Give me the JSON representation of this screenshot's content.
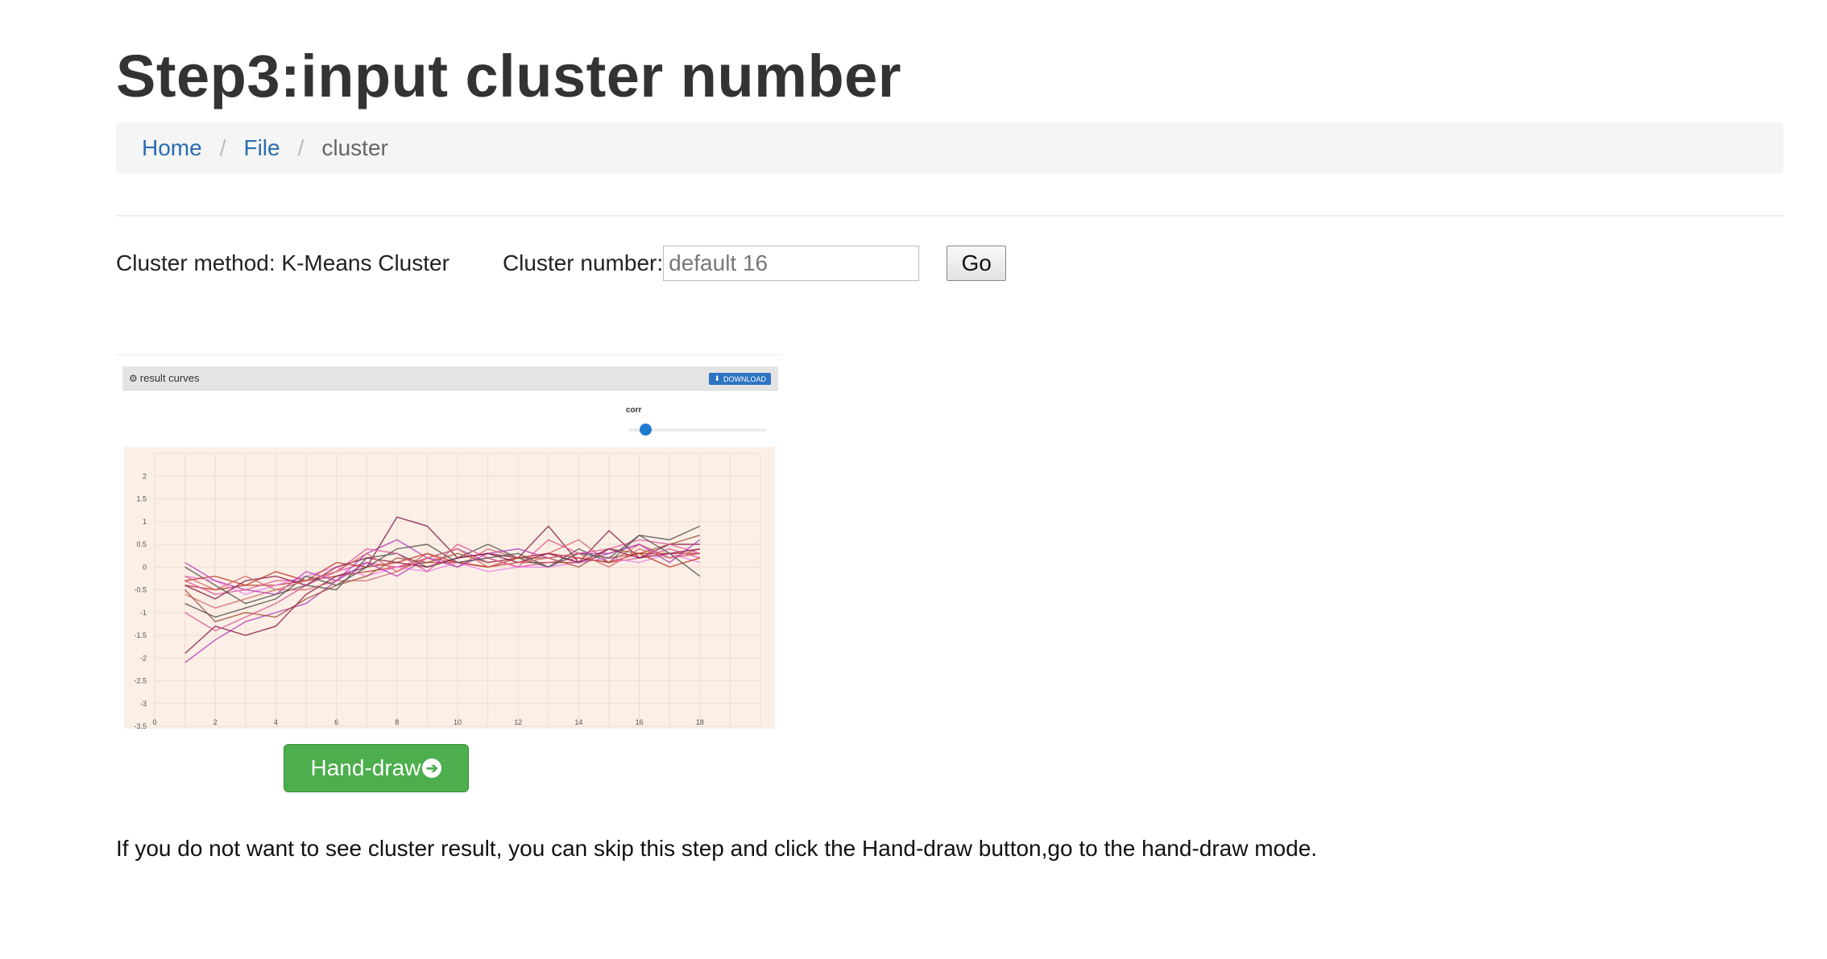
{
  "page": {
    "title": "Step3:input cluster number"
  },
  "breadcrumb": {
    "items": [
      "Home",
      "File"
    ],
    "current": "cluster",
    "separator": "/"
  },
  "form": {
    "method_label": "Cluster method: K-Means Cluster",
    "number_label": "Cluster number:",
    "number_placeholder": "default 16",
    "go_label": "Go"
  },
  "panel": {
    "header": "result curves",
    "download_label": "DOWNLOAD",
    "slider_label": "corr",
    "slider_value": 0.12,
    "icons": {
      "gear": "gear-icon",
      "download": "download-icon"
    }
  },
  "chart_data": {
    "type": "line",
    "x": [
      1,
      2,
      3,
      4,
      5,
      6,
      7,
      8,
      9,
      10,
      11,
      12,
      13,
      14,
      15,
      16,
      17,
      18
    ],
    "xlim": [
      0,
      20
    ],
    "ylim": [
      -3.5,
      2.5
    ],
    "x_ticks": [
      "0",
      "2",
      "4",
      "6",
      "8",
      "10",
      "12",
      "14",
      "16",
      "18"
    ],
    "y_ticks": [
      "2",
      "1.5",
      "1",
      "0.5",
      "0",
      "-0.5",
      "-1",
      "-1.5",
      "-2",
      "-2.5",
      "-3",
      "-3.5"
    ],
    "grid": true,
    "background": "#fbefe6",
    "colors": [
      "#c0392b",
      "#e0569b",
      "#b63fb8",
      "#8a1e4a",
      "#555555",
      "#d46a6a",
      "#ee82ee",
      "#a0523a"
    ],
    "series": [
      {
        "values": [
          -0.4,
          -0.5,
          -0.4,
          -0.4,
          -0.3,
          -0.2,
          -0.1,
          0.0,
          0.1,
          0.1,
          0.0,
          0.1,
          0.1,
          0.1,
          0.2,
          0.3,
          0.3,
          0.3
        ]
      },
      {
        "values": [
          -0.3,
          -0.6,
          -0.5,
          -0.3,
          -0.3,
          -0.1,
          0.1,
          0.0,
          0.2,
          0.1,
          0.2,
          0.0,
          0.1,
          0.2,
          0.1,
          0.2,
          0.4,
          0.2
        ]
      },
      {
        "values": [
          -2.1,
          -1.6,
          -1.2,
          -1.0,
          -0.8,
          -0.3,
          0.3,
          0.6,
          0.2,
          0.4,
          0.1,
          0.2,
          0.3,
          0.1,
          0.3,
          0.5,
          0.2,
          0.3
        ]
      },
      {
        "values": [
          -1.9,
          -1.3,
          -1.5,
          -1.3,
          -0.6,
          -0.2,
          0.0,
          1.1,
          0.9,
          0.2,
          0.3,
          0.2,
          0.9,
          0.1,
          0.8,
          0.2,
          0.5,
          0.5
        ]
      },
      {
        "values": [
          0.0,
          -0.4,
          -0.8,
          -0.6,
          -0.4,
          -0.5,
          0.2,
          0.3,
          0.0,
          0.2,
          0.5,
          0.2,
          0.0,
          0.4,
          0.1,
          0.7,
          0.6,
          0.9
        ]
      },
      {
        "values": [
          -0.6,
          -0.9,
          -0.7,
          -0.5,
          -0.5,
          -0.3,
          -0.3,
          -0.1,
          0.3,
          0.0,
          0.4,
          0.2,
          0.3,
          0.6,
          0.1,
          0.5,
          0.2,
          0.4
        ]
      },
      {
        "values": [
          -0.2,
          -0.3,
          -0.6,
          -0.4,
          -0.2,
          0.0,
          -0.2,
          0.0,
          -0.1,
          0.1,
          -0.1,
          0.0,
          0.0,
          0.1,
          0.2,
          0.1,
          0.3,
          0.1
        ]
      },
      {
        "values": [
          -0.5,
          -1.2,
          -1.0,
          -1.1,
          -0.7,
          -0.4,
          -0.2,
          0.2,
          0.1,
          0.3,
          0.1,
          0.2,
          0.2,
          0.0,
          0.4,
          0.3,
          0.5,
          0.7
        ]
      },
      {
        "values": [
          -0.3,
          -0.2,
          -0.4,
          -0.1,
          -0.3,
          0.1,
          0.0,
          0.1,
          0.3,
          0.1,
          0.0,
          0.2,
          0.3,
          0.2,
          0.1,
          0.3,
          0.0,
          0.2
        ]
      },
      {
        "values": [
          -1.0,
          -1.4,
          -1.1,
          -0.8,
          -0.4,
          -0.1,
          0.4,
          0.3,
          -0.1,
          0.5,
          0.2,
          0.0,
          0.6,
          0.3,
          0.4,
          0.6,
          0.5,
          0.3
        ]
      },
      {
        "values": [
          0.1,
          -0.3,
          -0.5,
          -0.6,
          -0.1,
          -0.3,
          0.1,
          -0.2,
          0.2,
          0.0,
          0.3,
          0.4,
          0.2,
          0.3,
          0.3,
          0.5,
          0.1,
          0.6
        ]
      },
      {
        "values": [
          -0.4,
          -0.7,
          -0.3,
          -0.2,
          -0.4,
          0.0,
          0.2,
          0.1,
          0.0,
          0.2,
          0.3,
          0.1,
          0.3,
          0.1,
          0.4,
          0.2,
          0.3,
          0.4
        ]
      },
      {
        "values": [
          -0.8,
          -1.1,
          -0.9,
          -0.7,
          -0.2,
          -0.4,
          0.0,
          0.4,
          0.5,
          0.1,
          0.2,
          0.3,
          0.0,
          0.3,
          0.2,
          0.7,
          0.3,
          -0.2
        ]
      },
      {
        "values": [
          -0.2,
          -0.5,
          -0.2,
          -0.5,
          -0.3,
          -0.1,
          0.3,
          -0.1,
          0.2,
          0.4,
          0.0,
          0.1,
          0.2,
          0.3,
          0.0,
          0.4,
          0.2,
          0.3
        ]
      }
    ]
  },
  "handdraw": {
    "label": "Hand-draw",
    "icon": "arrow-circle-right-icon"
  },
  "help_text": "If you do not want to see cluster result, you can skip this step and click the Hand-draw button,go to the hand-draw mode."
}
